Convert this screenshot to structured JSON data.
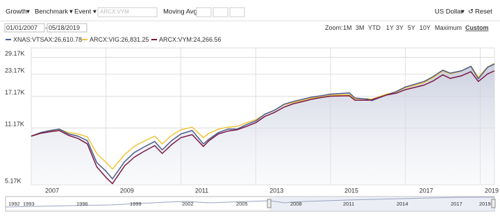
{
  "toolbar": {
    "growth": "Growth",
    "benchmark": "Benchmark",
    "event": "Event",
    "search_placeholder": "ARCX:VYM",
    "moving_avg": "Moving Avg",
    "currency": "US Dollar",
    "reset": "Reset"
  },
  "date_range": {
    "start": "01/01/2007",
    "end": "05/18/2019"
  },
  "zoom": {
    "label": "Zoom:",
    "options": [
      "1M",
      "3M",
      "YTD",
      "1Y",
      "3Y",
      "5Y",
      "10Y",
      "Maximum",
      "Custom"
    ]
  },
  "chart_data": {
    "type": "line",
    "log_y": true,
    "grid": true,
    "x": [
      2007,
      2007.25,
      2007.5,
      2007.75,
      2008,
      2008.25,
      2008.5,
      2008.75,
      2009,
      2009.17,
      2009.5,
      2009.75,
      2010,
      2010.3,
      2010.5,
      2010.75,
      2011,
      2011.3,
      2011.6,
      2011.75,
      2012,
      2012.25,
      2012.5,
      2012.75,
      2013,
      2013.25,
      2013.5,
      2013.75,
      2014,
      2014.5,
      2014.75,
      2015,
      2015.5,
      2015.65,
      2016,
      2016.1,
      2016.5,
      2016.75,
      2017,
      2017.5,
      2017.75,
      2018,
      2018.2,
      2018.5,
      2018.75,
      2018.95,
      2019.2,
      2019.38
    ],
    "series": [
      {
        "name": "XNAS:VTSAX:26,610.78",
        "color": "#4c5b8c",
        "values": [
          10000,
          10500,
          10800,
          11000,
          10300,
          10000,
          9400,
          7000,
          6200,
          5600,
          7100,
          8000,
          8600,
          9300,
          8300,
          9400,
          10300,
          10800,
          9000,
          9600,
          10500,
          11000,
          11000,
          11700,
          12300,
          13500,
          14200,
          15400,
          16000,
          17000,
          17300,
          17700,
          18000,
          16800,
          16500,
          16200,
          17500,
          18300,
          19500,
          21000,
          22500,
          24500,
          23500,
          24300,
          25800,
          21800,
          25500,
          26610.78
        ]
      },
      {
        "name": "ARCX:VIG:26,831.25",
        "color": "#f2c437",
        "values": [
          10000,
          10400,
          10700,
          11000,
          10500,
          10300,
          9900,
          7900,
          7000,
          6400,
          7800,
          8700,
          9300,
          10000,
          9000,
          10100,
          10900,
          11300,
          9800,
          10400,
          11000,
          11300,
          11400,
          12000,
          12500,
          13500,
          14200,
          15300,
          15800,
          16800,
          17000,
          17400,
          17600,
          16600,
          16600,
          16500,
          17700,
          18200,
          19300,
          20700,
          22200,
          24200,
          23300,
          24200,
          25900,
          22300,
          25600,
          26831.25
        ]
      },
      {
        "name": "ARCX:VYM:24,266.56",
        "color": "#7b1744",
        "values": [
          10000,
          10400,
          10600,
          10800,
          10100,
          9700,
          9000,
          6600,
          5700,
          5250,
          6700,
          7500,
          8100,
          8800,
          7900,
          8900,
          9800,
          10200,
          8700,
          9400,
          10300,
          10700,
          10900,
          11400,
          12000,
          13100,
          13800,
          14800,
          15500,
          16500,
          16900,
          17200,
          17300,
          16300,
          16300,
          16400,
          17500,
          17900,
          18800,
          20000,
          21200,
          23000,
          21900,
          22700,
          24000,
          21000,
          23300,
          24266.56
        ]
      }
    ],
    "xlim": [
      2007,
      2019.38
    ],
    "xticks": [
      2007,
      2009,
      2011,
      2013,
      2015,
      2017,
      2019
    ],
    "ylim": [
      5170,
      31300
    ],
    "yticks": [
      {
        "value": 5170,
        "label": "5.17K"
      },
      {
        "value": 11170,
        "label": "11.17K"
      },
      {
        "value": 17170,
        "label": "17.17K"
      },
      {
        "value": 23170,
        "label": "23.17K"
      },
      {
        "value": 29170,
        "label": "29.17K"
      }
    ]
  },
  "navigator": {
    "labels": [
      "1992",
      "1993",
      "1996",
      "1999",
      "2002",
      "2005",
      "2008",
      "2011",
      "2014",
      "2017",
      "2019"
    ]
  }
}
